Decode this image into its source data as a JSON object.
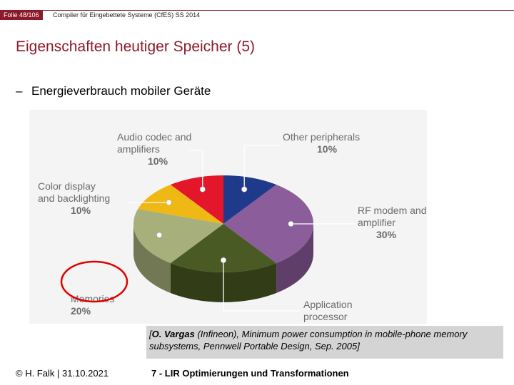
{
  "header": {
    "slide_number": "Folie 48/106",
    "course": "Compiler für Eingebettete Systeme (CfES) SS 2014"
  },
  "slide": {
    "title": "Eigenschaften heutiger Speicher (5)",
    "bullet_dash": "–",
    "bullet_text": "Energieverbrauch mobiler Geräte"
  },
  "chart_data": {
    "type": "pie",
    "slices": [
      {
        "label": "Other peripherals",
        "value": 10,
        "value_label": "10%",
        "color": "#1f3a8a"
      },
      {
        "label": "RF modem and amplifier",
        "value": 30,
        "value_label": "30%",
        "color": "#8b5d9b"
      },
      {
        "label": "Application processor",
        "value": 20,
        "value_label": "",
        "color": "#4a5a24"
      },
      {
        "label": "Memories",
        "value": 20,
        "value_label": "20%",
        "color": "#a7b07a"
      },
      {
        "label": "Color display and backlighting",
        "value": 10,
        "value_label": "10%",
        "color": "#f0b814"
      },
      {
        "label": "Audio codec and amplifiers",
        "value": 10,
        "value_label": "10%",
        "color": "#e3162a"
      }
    ],
    "highlight": {
      "slice": "Memories",
      "color": "#e00000"
    }
  },
  "citation": {
    "open": "[",
    "author": "O. Vargas",
    "rest": " (Infineon), Minimum power consumption in mobile-phone memory subsystems, Pennwell Portable Design, Sep. 2005]"
  },
  "footer": {
    "left": "© H. Falk | 31.10.2021",
    "right": "7 - LIR Optimierungen und Transformationen"
  }
}
